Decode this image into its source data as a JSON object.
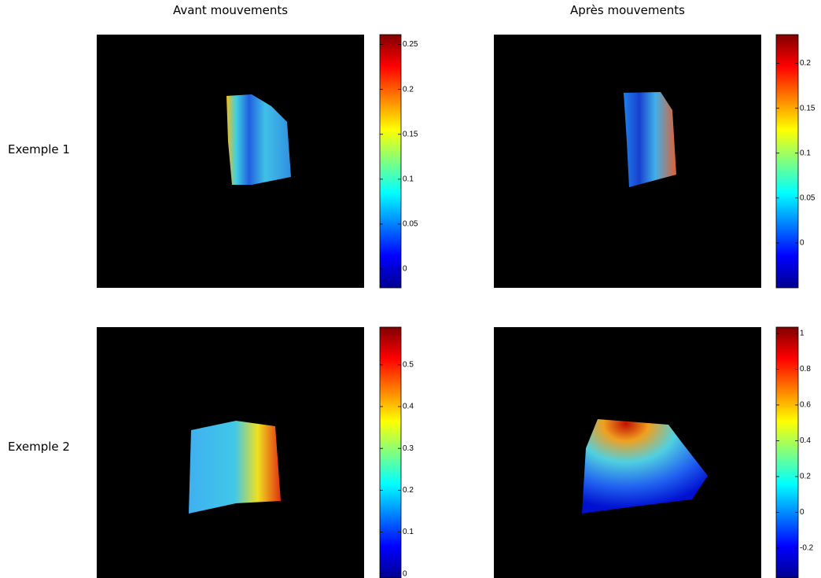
{
  "column_titles": [
    "Avant mouvements",
    "Après mouvements"
  ],
  "row_labels": [
    "Exemple 1",
    "Exemple 2"
  ],
  "panels": [
    {
      "colorbar": {
        "lim": [
          -0.021,
          0.261
        ],
        "ticks": [
          0,
          0.05,
          0.1,
          0.15,
          0.2,
          0.25
        ]
      }
    },
    {
      "colorbar": {
        "lim": [
          -0.05,
          0.232
        ],
        "ticks": [
          0,
          0.05,
          0.1,
          0.15,
          0.2
        ]
      }
    },
    {
      "colorbar": {
        "lim": [
          -0.01,
          0.59
        ],
        "ticks": [
          0,
          0.1,
          0.2,
          0.3,
          0.4,
          0.5
        ]
      }
    },
    {
      "colorbar": {
        "lim": [
          -0.367,
          1.035
        ],
        "ticks": [
          -0.2,
          0,
          0.2,
          0.4,
          0.6,
          0.8,
          1
        ]
      }
    }
  ]
}
